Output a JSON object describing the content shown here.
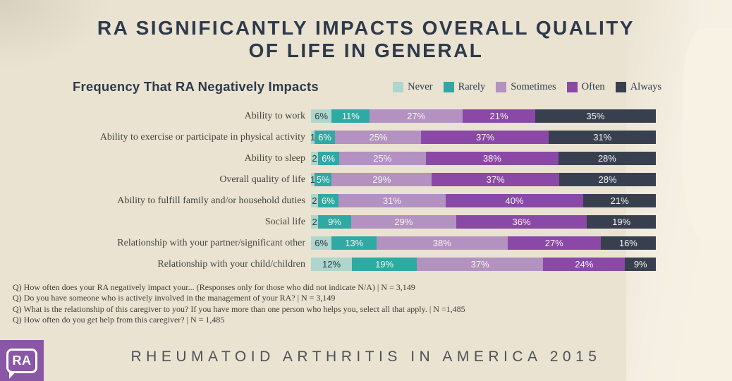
{
  "title": {
    "line1": "RA SIGNIFICANTLY IMPACTS OVERALL QUALITY",
    "line2": "OF LIFE IN GENERAL"
  },
  "colors": {
    "background": "#eae3d2",
    "paper_highlight": "#f6f1e3",
    "heading_text": "#2e3a4b",
    "logo_purple": "#8a56a6"
  },
  "chart_data": {
    "type": "bar",
    "variant": "horizontal-stacked-100",
    "title": "Frequency That RA Negatively Impacts",
    "value_format": "percent",
    "legend_position": "top-right",
    "categories": [
      "Ability to work",
      "Ability to exercise or participate in physical activity",
      "Ability to sleep",
      "Overall quality of life",
      "Ability to fulfill family and/or household duties",
      "Social life",
      "Relationship with your partner/significant other",
      "Relationship with your child/children"
    ],
    "series": [
      {
        "name": "Never",
        "color": "#aed6cc",
        "text_color": "#2e3a4b",
        "values": [
          6,
          1,
          2,
          1,
          2,
          2,
          6,
          12
        ],
        "labels": [
          "6%",
          "1",
          "2",
          "1",
          "2",
          "2",
          "6%",
          "12%"
        ]
      },
      {
        "name": "Rarely",
        "color": "#2fa9a4",
        "text_color": "#f7f5f1",
        "values": [
          11,
          6,
          6,
          5,
          6,
          9,
          13,
          19
        ],
        "labels": [
          "11%",
          "6%",
          "6%",
          "5%",
          "6%",
          "9%",
          "13%",
          "19%"
        ]
      },
      {
        "name": "Sometimes",
        "color": "#b392c1",
        "text_color": "#f7f5f1",
        "values": [
          27,
          25,
          25,
          29,
          31,
          29,
          38,
          37
        ],
        "labels": [
          "27%",
          "25%",
          "25%",
          "29%",
          "31%",
          "29%",
          "38%",
          "37%"
        ]
      },
      {
        "name": "Often",
        "color": "#8a49a6",
        "text_color": "#f7f5f1",
        "values": [
          21,
          37,
          38,
          37,
          40,
          36,
          27,
          24
        ],
        "labels": [
          "21%",
          "37%",
          "38%",
          "37%",
          "40%",
          "36%",
          "27%",
          "24%"
        ]
      },
      {
        "name": "Always",
        "color": "#384050",
        "text_color": "#f7f5f1",
        "values": [
          35,
          31,
          28,
          28,
          21,
          19,
          16,
          9
        ],
        "labels": [
          "35%",
          "31%",
          "28%",
          "28%",
          "21%",
          "19%",
          "16%",
          "9%"
        ]
      }
    ]
  },
  "footnotes": [
    "Q) How often does your RA negatively impact your... (Responses only for those who did not indicate N/A) | N = 3,149",
    "Q) Do you have someone who is actively involved in the management of your RA? | N = 3,149",
    "Q) What is the relationship of this caregiver to you? If you have more than one person who helps you, select all that apply. | N =1,485",
    "Q) How often do you get help from this caregiver? | N = 1,485"
  ],
  "footer": {
    "logo_text": "RA",
    "wordmark": "RHEUMATOID ARTHRITIS IN AMERICA 2015"
  }
}
